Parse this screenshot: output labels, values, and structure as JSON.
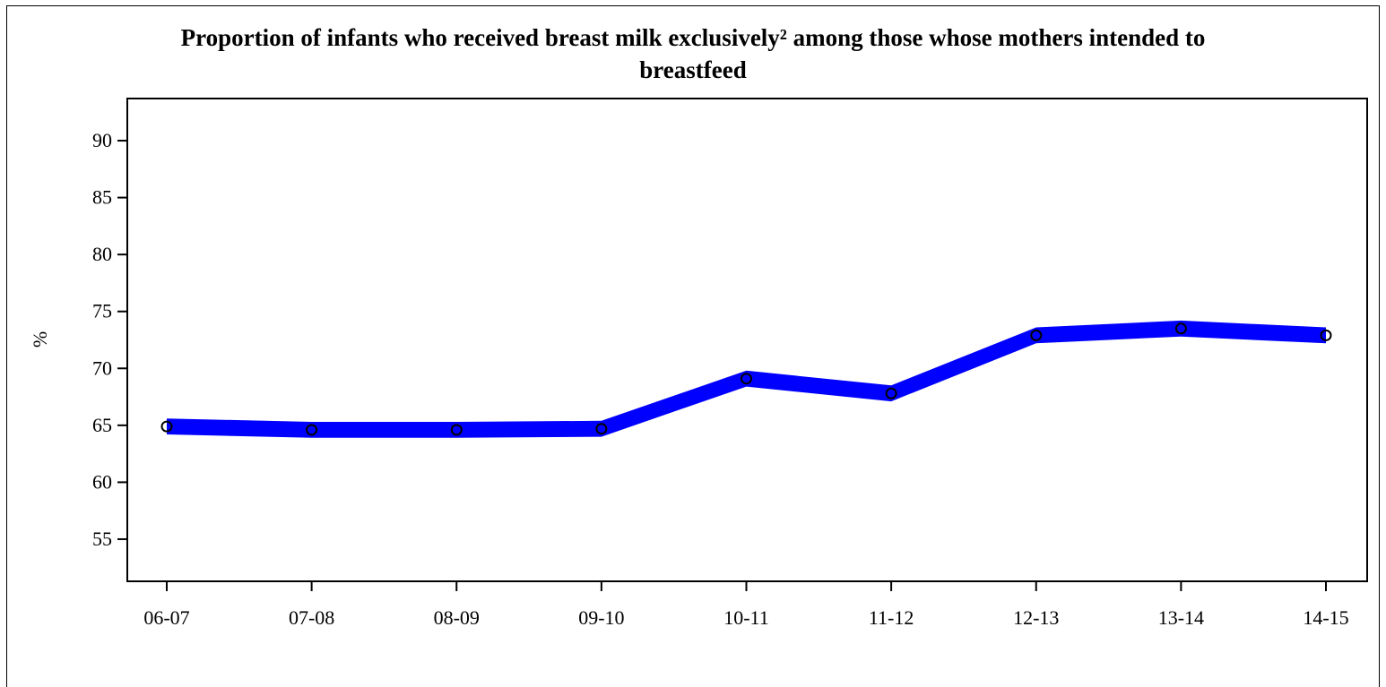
{
  "chart_data": {
    "type": "line",
    "title_line1": "Proportion of infants who received breast milk exclusively² among those whose mothers intended to",
    "title_line2": "breastfeed",
    "xlabel": "",
    "ylabel": "%",
    "categories": [
      "06-07",
      "07-08",
      "08-09",
      "09-10",
      "10-11",
      "11-12",
      "12-13",
      "13-14",
      "14-15"
    ],
    "y_ticks": [
      55,
      60,
      65,
      70,
      75,
      80,
      85,
      90
    ],
    "ylim": [
      51.3,
      93.7
    ],
    "grid": false,
    "legend": "none",
    "series": [
      {
        "values": [
          64.9,
          64.6,
          64.6,
          64.7,
          69.1,
          67.8,
          72.9,
          73.5,
          72.9
        ],
        "band_lower": [
          64.2,
          63.9,
          63.9,
          64.0,
          68.4,
          67.1,
          72.2,
          72.8,
          72.2
        ],
        "band_upper": [
          65.6,
          65.3,
          65.3,
          65.4,
          69.8,
          68.5,
          73.6,
          74.2,
          73.6
        ],
        "band_color": "#0000ff",
        "marker": "open-circle",
        "marker_color": "#000000"
      }
    ]
  }
}
